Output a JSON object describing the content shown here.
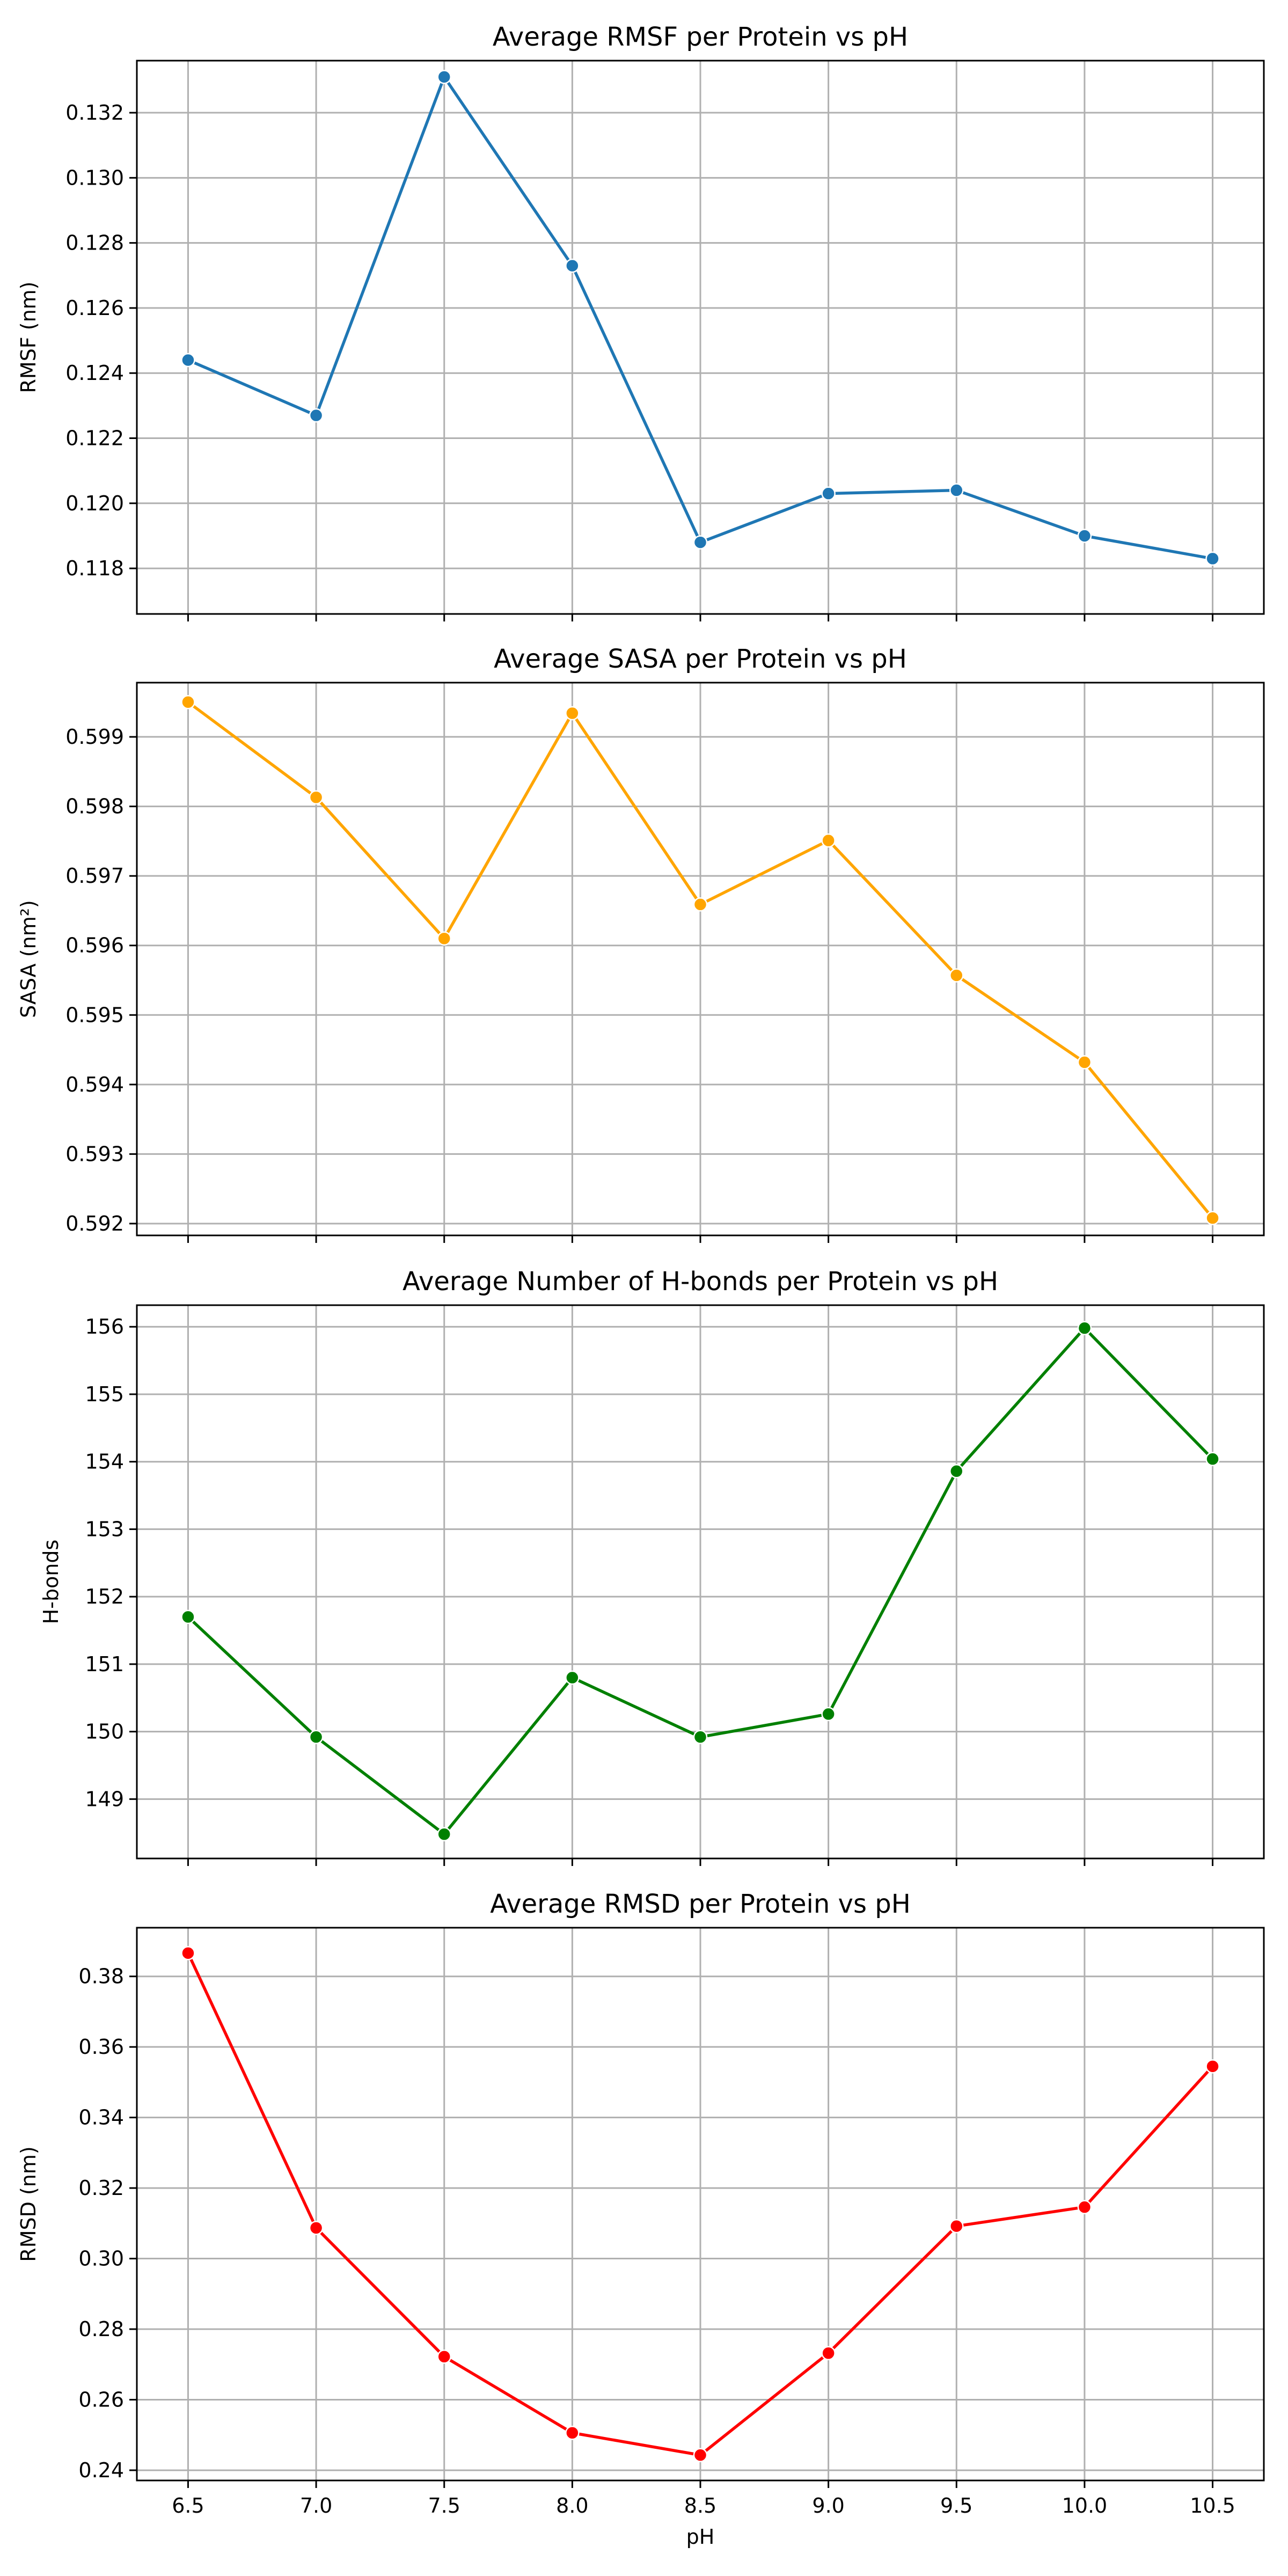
{
  "chart_data": [
    {
      "type": "line",
      "title": "Average RMSF per Protein vs pH",
      "xlabel": "",
      "ylabel": "RMSF (nm)",
      "x": [
        6.5,
        7.0,
        7.5,
        8.0,
        8.5,
        9.0,
        9.5,
        10.0,
        10.5
      ],
      "x_tick_labels": [
        "6.5",
        "7.0",
        "7.5",
        "8.0",
        "8.5",
        "9.0",
        "9.5",
        "10.0",
        "10.5"
      ],
      "xlim": [
        6.3,
        10.7
      ],
      "y": [
        0.1244,
        0.1227,
        0.1331,
        0.1273,
        0.1188,
        0.1203,
        0.1204,
        0.119,
        0.1183
      ],
      "ylim": [
        0.1166,
        0.1336
      ],
      "yticks": [
        0.118,
        0.12,
        0.122,
        0.124,
        0.126,
        0.128,
        0.13,
        0.132
      ],
      "y_tick_labels": [
        "0.118",
        "0.120",
        "0.122",
        "0.124",
        "0.126",
        "0.128",
        "0.130",
        "0.132"
      ],
      "color": "#1f77b4",
      "grid": true
    },
    {
      "type": "line",
      "title": "Average SASA per Protein vs pH",
      "xlabel": "",
      "ylabel": "SASA (nm²)",
      "x": [
        6.5,
        7.0,
        7.5,
        8.0,
        8.5,
        9.0,
        9.5,
        10.0,
        10.5
      ],
      "x_tick_labels": [
        "6.5",
        "7.0",
        "7.5",
        "8.0",
        "8.5",
        "9.0",
        "9.5",
        "10.0",
        "10.5"
      ],
      "xlim": [
        6.3,
        10.7
      ],
      "y": [
        0.5995,
        0.59813,
        0.5961,
        0.59934,
        0.59659,
        0.59751,
        0.59557,
        0.59432,
        0.59208
      ],
      "ylim": [
        0.59183,
        0.59978
      ],
      "yticks": [
        0.592,
        0.593,
        0.594,
        0.595,
        0.596,
        0.597,
        0.598,
        0.599
      ],
      "y_tick_labels": [
        "0.592",
        "0.593",
        "0.594",
        "0.595",
        "0.596",
        "0.597",
        "0.598",
        "0.599"
      ],
      "color": "#ffa500",
      "grid": true
    },
    {
      "type": "line",
      "title": "Average Number of H-bonds per Protein vs pH",
      "xlabel": "",
      "ylabel": "H-bonds",
      "x": [
        6.5,
        7.0,
        7.5,
        8.0,
        8.5,
        9.0,
        9.5,
        10.0,
        10.5
      ],
      "x_tick_labels": [
        "6.5",
        "7.0",
        "7.5",
        "8.0",
        "8.5",
        "9.0",
        "9.5",
        "10.0",
        "10.5"
      ],
      "xlim": [
        6.3,
        10.7
      ],
      "y": [
        151.7,
        149.92,
        148.48,
        150.8,
        149.92,
        150.26,
        153.86,
        155.98,
        154.04
      ],
      "ylim": [
        148.12,
        156.32
      ],
      "yticks": [
        149,
        150,
        151,
        152,
        153,
        154,
        155,
        156
      ],
      "y_tick_labels": [
        "149",
        "150",
        "151",
        "152",
        "153",
        "154",
        "155",
        "156"
      ],
      "color": "#008000",
      "grid": true
    },
    {
      "type": "line",
      "title": "Average RMSD per Protein vs pH",
      "xlabel": "pH",
      "ylabel": "RMSD (nm)",
      "x": [
        6.5,
        7.0,
        7.5,
        8.0,
        8.5,
        9.0,
        9.5,
        10.0,
        10.5
      ],
      "x_tick_labels": [
        "6.5",
        "7.0",
        "7.5",
        "8.0",
        "8.5",
        "9.0",
        "9.5",
        "10.0",
        "10.5"
      ],
      "xlim": [
        6.3,
        10.7
      ],
      "y": [
        0.3866,
        0.3087,
        0.2722,
        0.2506,
        0.2443,
        0.2732,
        0.3092,
        0.3146,
        0.3545
      ],
      "ylim": [
        0.2371,
        0.3938
      ],
      "yticks": [
        0.24,
        0.26,
        0.28,
        0.3,
        0.32,
        0.34,
        0.36,
        0.38
      ],
      "y_tick_labels": [
        "0.24",
        "0.26",
        "0.28",
        "0.30",
        "0.32",
        "0.34",
        "0.36",
        "0.38"
      ],
      "color": "#ff0000",
      "grid": true
    }
  ]
}
